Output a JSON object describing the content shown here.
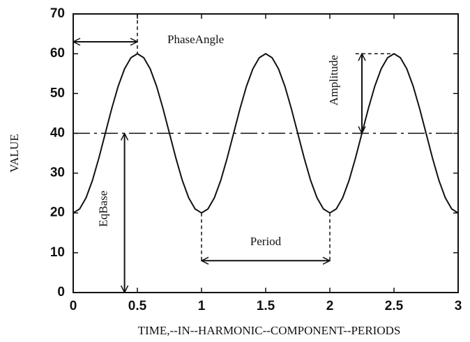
{
  "chart_data": {
    "type": "line",
    "x_label": "TIME,--IN--HARMONIC--COMPONENT--PERIODS",
    "y_label": "VALUE",
    "x": [
      0,
      0.05,
      0.1,
      0.15,
      0.2,
      0.25,
      0.3,
      0.35,
      0.4,
      0.45,
      0.5,
      0.55,
      0.6,
      0.65,
      0.7,
      0.75,
      0.8,
      0.85,
      0.9,
      0.95,
      1,
      1.05,
      1.1,
      1.15,
      1.2,
      1.25,
      1.3,
      1.35,
      1.4,
      1.45,
      1.5,
      1.55,
      1.6,
      1.65,
      1.7,
      1.75,
      1.8,
      1.85,
      1.9,
      1.95,
      2,
      2.05,
      2.1,
      2.15,
      2.2,
      2.25,
      2.3,
      2.35,
      2.4,
      2.45,
      2.5,
      2.55,
      2.6,
      2.65,
      2.7,
      2.75,
      2.8,
      2.85,
      2.9,
      2.95,
      3
    ],
    "series": [
      {
        "color": "#111111",
        "values": [
          20,
          21.0,
          23.8,
          28.2,
          33.8,
          40,
          46.2,
          51.8,
          56.2,
          59.0,
          60,
          59.0,
          56.2,
          51.8,
          46.2,
          40,
          33.8,
          28.2,
          23.8,
          21.0,
          20,
          21.0,
          23.8,
          28.2,
          33.8,
          40,
          46.2,
          51.8,
          56.2,
          59.0,
          60,
          59.0,
          56.2,
          51.8,
          46.2,
          40,
          33.8,
          28.2,
          23.8,
          21.0,
          20,
          21.0,
          23.8,
          28.2,
          33.8,
          40,
          46.2,
          51.8,
          56.2,
          59.0,
          60,
          59.0,
          56.2,
          51.8,
          46.2,
          40,
          33.8,
          28.2,
          23.8,
          21.0,
          20
        ]
      }
    ],
    "reference_line": 40,
    "annotations": [
      {
        "text": "PhaseAngle",
        "arrow_x": [
          0,
          0.5
        ],
        "arrow_y": [
          63,
          63
        ],
        "guides": [
          {
            "x": [
              0.5,
              0.5
            ],
            "y": [
              70,
              60
            ]
          }
        ]
      },
      {
        "text": "Amplitude",
        "arrow_x": [
          2.25,
          2.25
        ],
        "arrow_y": [
          60,
          40
        ],
        "guides": [
          {
            "x": [
              2.2,
              2.5
            ],
            "y": [
              60,
              60
            ]
          }
        ]
      },
      {
        "text": "EqBase",
        "arrow_x": [
          0.4,
          0.4
        ],
        "arrow_y": [
          40,
          0
        ],
        "guides": []
      },
      {
        "text": "Period",
        "arrow_x": [
          1,
          2
        ],
        "arrow_y": [
          8,
          8
        ],
        "guides": [
          {
            "x": [
              1,
              1
            ],
            "y": [
              20,
              8
            ]
          },
          {
            "x": [
              2,
              2
            ],
            "y": [
              20,
              8
            ]
          }
        ]
      }
    ],
    "xlim": [
      0,
      3
    ],
    "ylim": [
      0,
      70
    ],
    "xticks": [
      0,
      0.5,
      1,
      1.5,
      2,
      2.5,
      3
    ],
    "yticks": [
      0,
      10,
      20,
      30,
      40,
      50,
      60,
      70
    ]
  }
}
